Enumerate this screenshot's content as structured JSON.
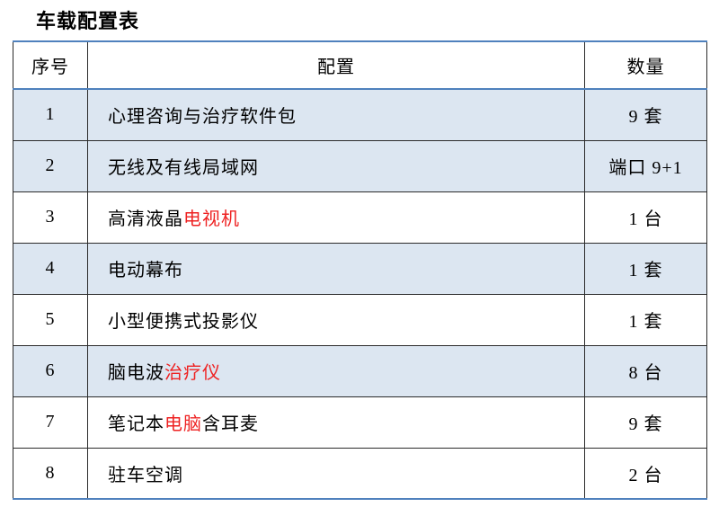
{
  "page": {
    "title": "车载配置表",
    "background": "#ffffff"
  },
  "table": {
    "headers": [
      {
        "key": "no",
        "label": "序号"
      },
      {
        "key": "config",
        "label": "配置"
      },
      {
        "key": "qty",
        "label": "数量"
      }
    ],
    "rows": [
      {
        "no": "1",
        "config": [
          {
            "t": "心理咨询与治疗软件包",
            "red": false
          }
        ],
        "qty": "9 套",
        "qty_red": true,
        "shaded": true
      },
      {
        "no": "2",
        "config": [
          {
            "t": "无线及有线局域网",
            "red": false
          }
        ],
        "qty": "端口 9+1",
        "qty_red": false,
        "shaded": true
      },
      {
        "no": "3",
        "config": [
          {
            "t": "高清液晶",
            "red": false
          },
          {
            "t": "电视机",
            "red": true
          }
        ],
        "qty": "1 台",
        "qty_red": false,
        "shaded": false
      },
      {
        "no": "4",
        "config": [
          {
            "t": "电动幕布",
            "red": false
          }
        ],
        "qty": "1 套",
        "qty_red": false,
        "shaded": true
      },
      {
        "no": "5",
        "config": [
          {
            "t": "小型便携式投影仪",
            "red": false
          }
        ],
        "qty": "1 套",
        "qty_red": false,
        "shaded": false
      },
      {
        "no": "6",
        "config": [
          {
            "t": "脑电波",
            "red": false
          },
          {
            "t": "治疗仪",
            "red": true
          }
        ],
        "qty": "8 台",
        "qty_red": true,
        "shaded": true
      },
      {
        "no": "7",
        "config": [
          {
            "t": "笔记本",
            "red": false
          },
          {
            "t": "电脑",
            "red": true
          },
          {
            "t": "含耳麦",
            "red": false
          }
        ],
        "qty": "9 套",
        "qty_red": true,
        "shaded": false
      },
      {
        "no": "8",
        "config": [
          {
            "t": "驻车空调",
            "red": false
          }
        ],
        "qty": "2 台",
        "qty_red": true,
        "shaded": false
      }
    ],
    "colors": {
      "accent_border": "#4f81bd",
      "shaded_row_bg": "#dce6f1",
      "red_text": "#ee2222",
      "inner_border": "#2b2b2b"
    }
  }
}
